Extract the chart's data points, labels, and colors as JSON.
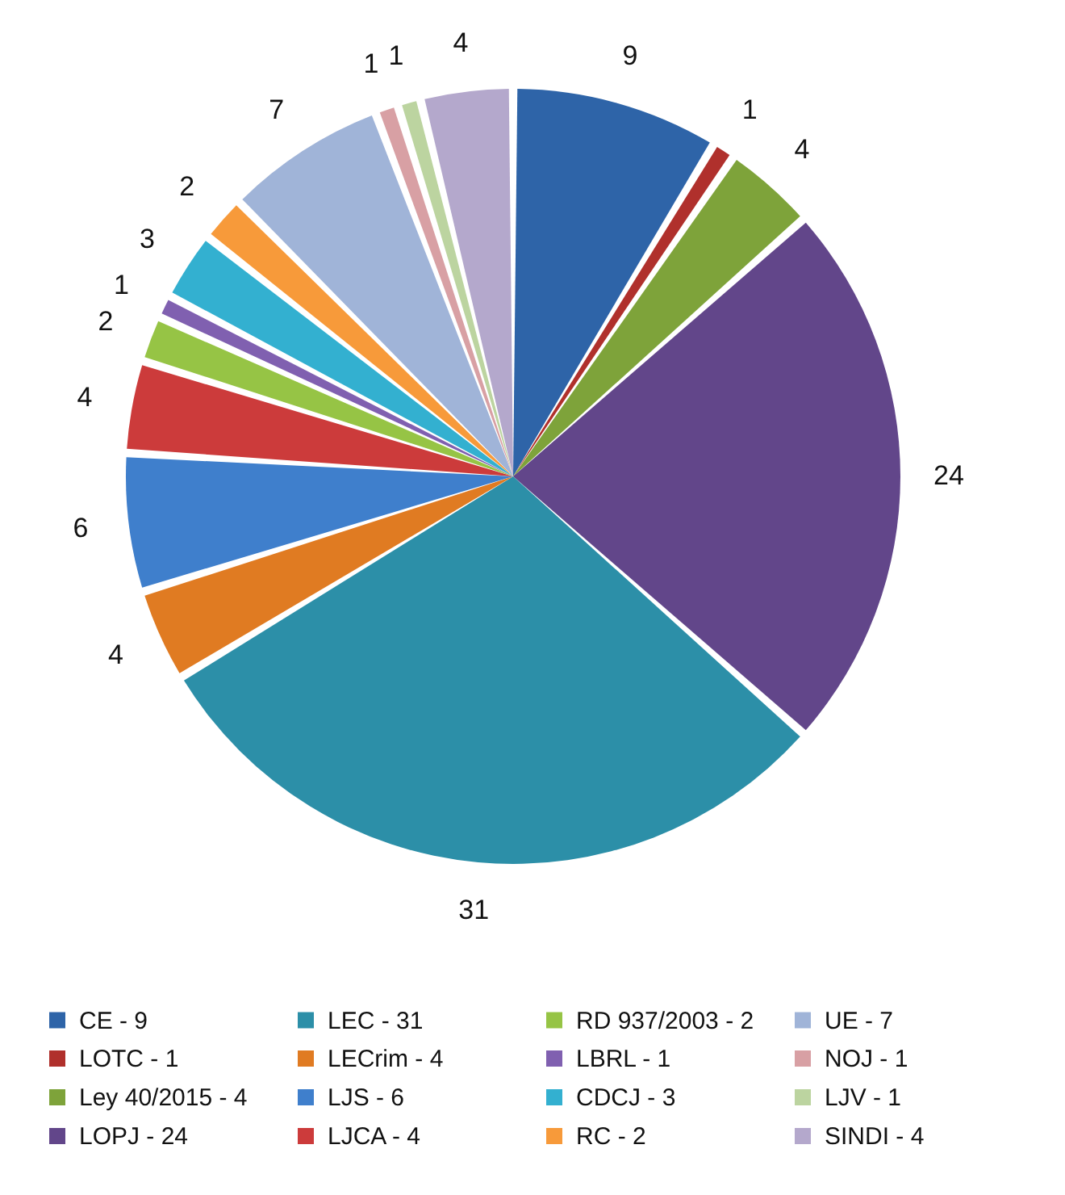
{
  "chart_data": {
    "type": "pie",
    "categories": [
      "CE - 9",
      "LOTC - 1",
      "Ley 40/2015 - 4",
      "LOPJ - 24",
      "LEC - 31",
      "LECrim - 4",
      "LJS - 6",
      "LJCA - 4",
      "RD 937/2003 - 2",
      "LBRL - 1",
      "CDCJ - 3",
      "RC - 2",
      "UE - 7",
      "NOJ - 1",
      "LJV - 1",
      "SINDI - 4"
    ],
    "values": [
      9,
      1,
      4,
      24,
      31,
      4,
      6,
      4,
      2,
      1,
      3,
      2,
      7,
      1,
      1,
      4
    ],
    "colors": [
      "#2e64a8",
      "#b0302c",
      "#7ea33a",
      "#62468a",
      "#2c8fa8",
      "#e07b22",
      "#3f7fcc",
      "#cc3b3b",
      "#96c445",
      "#8060b0",
      "#33b0d0",
      "#f79a3a",
      "#a0b4d8",
      "#d8a0a4",
      "#bcd4a0",
      "#b4a8cc"
    ],
    "data_labels": true,
    "legend": "bottom"
  }
}
